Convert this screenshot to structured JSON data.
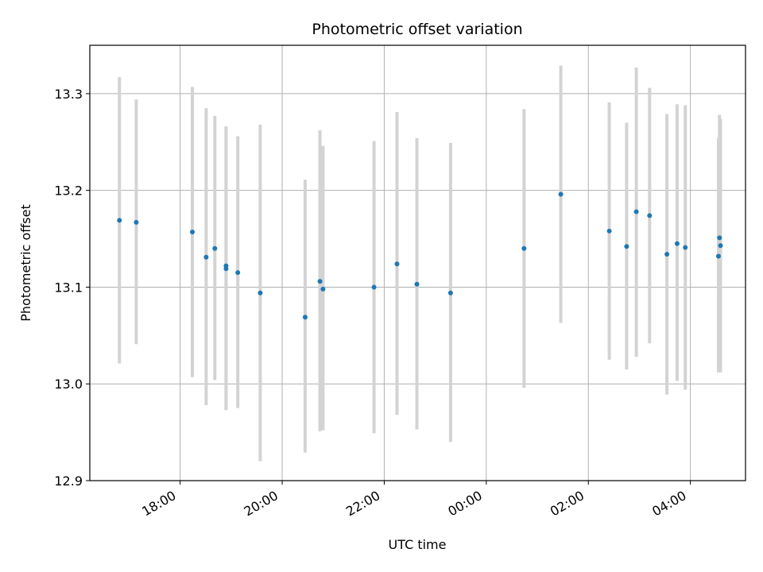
{
  "chart_data": {
    "type": "scatter",
    "title": "Photometric offset variation",
    "xlabel": "UTC time",
    "ylabel": "Photometric offset",
    "x_unit": "hours since 00:00 of observing night (values >= 24 are after midnight)",
    "xlim": [
      16.23,
      29.08
    ],
    "ylim": [
      12.9,
      13.35
    ],
    "x_ticks": [
      {
        "value": 18,
        "label": "18:00"
      },
      {
        "value": 20,
        "label": "20:00"
      },
      {
        "value": 22,
        "label": "22:00"
      },
      {
        "value": 24,
        "label": "00:00"
      },
      {
        "value": 26,
        "label": "02:00"
      },
      {
        "value": 28,
        "label": "04:00"
      }
    ],
    "y_ticks": [
      {
        "value": 12.9,
        "label": "12.9"
      },
      {
        "value": 13.0,
        "label": "13.0"
      },
      {
        "value": 13.1,
        "label": "13.1"
      },
      {
        "value": 13.2,
        "label": "13.2"
      },
      {
        "value": 13.3,
        "label": "13.3"
      }
    ],
    "grid": true,
    "marker_color": "#1f77b4",
    "errorbar_color": "#d3d3d3",
    "points": [
      {
        "x": 16.81,
        "y": 13.169,
        "lo": 13.021,
        "hi": 13.317
      },
      {
        "x": 17.14,
        "y": 13.167,
        "lo": 13.041,
        "hi": 13.294
      },
      {
        "x": 18.24,
        "y": 13.157,
        "lo": 13.007,
        "hi": 13.307
      },
      {
        "x": 18.51,
        "y": 13.131,
        "lo": 12.978,
        "hi": 13.285
      },
      {
        "x": 18.68,
        "y": 13.14,
        "lo": 13.004,
        "hi": 13.277
      },
      {
        "x": 18.9,
        "y": 13.122,
        "lo": 12.973,
        "hi": 13.266
      },
      {
        "x": 18.9,
        "y": 13.119,
        "lo": 12.973,
        "hi": 13.266
      },
      {
        "x": 19.13,
        "y": 13.115,
        "lo": 12.975,
        "hi": 13.256
      },
      {
        "x": 19.57,
        "y": 13.094,
        "lo": 12.92,
        "hi": 13.268
      },
      {
        "x": 20.45,
        "y": 13.069,
        "lo": 12.929,
        "hi": 13.211
      },
      {
        "x": 20.74,
        "y": 13.106,
        "lo": 12.951,
        "hi": 13.262
      },
      {
        "x": 20.8,
        "y": 13.098,
        "lo": 12.952,
        "hi": 13.246
      },
      {
        "x": 21.8,
        "y": 13.1,
        "lo": 12.949,
        "hi": 13.251
      },
      {
        "x": 22.25,
        "y": 13.124,
        "lo": 12.968,
        "hi": 13.281
      },
      {
        "x": 22.64,
        "y": 13.103,
        "lo": 12.953,
        "hi": 13.254
      },
      {
        "x": 23.3,
        "y": 13.094,
        "lo": 12.94,
        "hi": 13.249
      },
      {
        "x": 24.74,
        "y": 13.14,
        "lo": 12.996,
        "hi": 13.284
      },
      {
        "x": 25.46,
        "y": 13.196,
        "lo": 13.063,
        "hi": 13.329
      },
      {
        "x": 26.41,
        "y": 13.158,
        "lo": 13.025,
        "hi": 13.291
      },
      {
        "x": 26.75,
        "y": 13.142,
        "lo": 13.015,
        "hi": 13.27
      },
      {
        "x": 26.94,
        "y": 13.178,
        "lo": 13.028,
        "hi": 13.327
      },
      {
        "x": 27.2,
        "y": 13.174,
        "lo": 13.042,
        "hi": 13.306
      },
      {
        "x": 27.54,
        "y": 13.134,
        "lo": 12.989,
        "hi": 13.279
      },
      {
        "x": 27.74,
        "y": 13.145,
        "lo": 13.003,
        "hi": 13.289
      },
      {
        "x": 27.9,
        "y": 13.141,
        "lo": 12.994,
        "hi": 13.288
      },
      {
        "x": 28.55,
        "y": 13.132,
        "lo": 13.012,
        "hi": 13.254
      },
      {
        "x": 28.57,
        "y": 13.151,
        "lo": 13.012,
        "hi": 13.278
      },
      {
        "x": 28.59,
        "y": 13.143,
        "lo": 13.012,
        "hi": 13.274
      }
    ]
  }
}
